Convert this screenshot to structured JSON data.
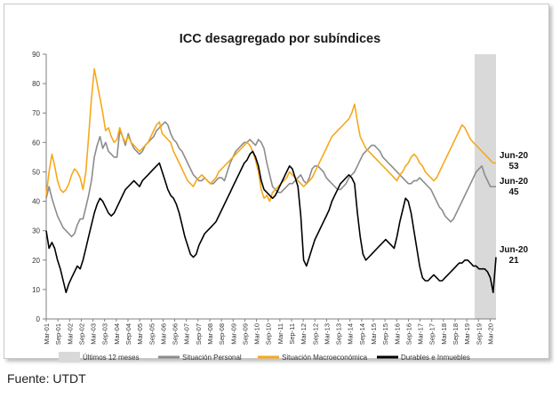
{
  "chart_data": {
    "type": "line",
    "title": "ICC desagregado por subíndices",
    "xlabel": "",
    "ylabel": "",
    "ylim": [
      0,
      90
    ],
    "yticks": [
      0,
      10,
      20,
      30,
      40,
      50,
      60,
      70,
      80,
      90
    ],
    "xticks": [
      "Mar-01",
      "Sep-01",
      "Mar-02",
      "Sep-02",
      "Mar-03",
      "Sep-03",
      "Mar-04",
      "Sep-04",
      "Mar-05",
      "Sep-05",
      "Mar-06",
      "Sep-06",
      "Mar-07",
      "Sep-07",
      "Mar-08",
      "Sep-08",
      "Mar-09",
      "Sep-09",
      "Mar-10",
      "Sep-10",
      "Mar-11",
      "Sep-11",
      "Mar-12",
      "Sep-12",
      "Mar-13",
      "Sep-13",
      "Mar-14",
      "Sep-14",
      "Mar-15",
      "Sep-15",
      "Mar-16",
      "Sep-16",
      "Mar-17",
      "Sep-17",
      "Mar-18",
      "Sep-18",
      "Mar-19",
      "Sep-19",
      "Mar-20"
    ],
    "x_start": "Mar-01",
    "x_end": "Jun-20",
    "grid": false,
    "legend_position": "bottom",
    "shaded_band": {
      "label": "Últimos 12 meses",
      "from": "Jul-19",
      "to": "Jun-20",
      "color": "#d9d9d9"
    },
    "series": [
      {
        "name": "Situación Personal",
        "color": "#8c8c8c",
        "values": [
          41,
          45,
          41,
          38,
          35,
          33,
          31,
          30,
          29,
          28,
          29,
          32,
          34,
          34,
          38,
          42,
          47,
          55,
          59,
          62,
          58,
          60,
          57,
          56,
          55,
          55,
          64,
          62,
          59,
          63,
          60,
          58,
          57,
          56,
          57,
          59,
          60,
          61,
          62,
          64,
          65,
          66,
          67,
          66,
          63,
          61,
          60,
          58,
          57,
          55,
          53,
          51,
          49,
          48,
          47,
          47,
          48,
          47,
          46,
          46,
          47,
          48,
          48,
          47,
          50,
          53,
          55,
          57,
          58,
          59,
          60,
          60,
          61,
          60,
          59,
          61,
          60,
          58,
          53,
          49,
          45,
          44,
          43,
          43,
          44,
          45,
          46,
          46,
          47,
          48,
          49,
          47,
          46,
          48,
          51,
          52,
          52,
          51,
          50,
          48,
          47,
          46,
          45,
          44,
          44,
          45,
          46,
          48,
          49,
          50,
          52,
          54,
          56,
          57,
          58,
          59,
          59,
          58,
          57,
          55,
          54,
          53,
          52,
          51,
          50,
          49,
          48,
          47,
          46,
          46,
          47,
          47,
          48,
          47,
          46,
          45,
          44,
          42,
          40,
          38,
          37,
          35,
          34,
          33,
          34,
          36,
          38,
          40,
          42,
          44,
          46,
          48,
          50,
          51,
          52,
          49,
          47,
          45,
          45,
          45
        ],
        "end_label": {
          "date": "Jun-20",
          "value": "45"
        }
      },
      {
        "name": "Situación Macroeconómica",
        "color": "#f7a81b",
        "values": [
          42,
          50,
          56,
          52,
          47,
          44,
          43,
          44,
          46,
          49,
          51,
          50,
          48,
          44,
          50,
          62,
          75,
          85,
          80,
          75,
          70,
          64,
          65,
          62,
          60,
          61,
          65,
          62,
          60,
          62,
          60,
          59,
          58,
          57,
          58,
          59,
          60,
          62,
          64,
          66,
          67,
          63,
          62,
          61,
          60,
          57,
          55,
          53,
          51,
          49,
          47,
          46,
          45,
          47,
          48,
          49,
          48,
          47,
          46,
          47,
          48,
          50,
          51,
          52,
          53,
          54,
          55,
          56,
          57,
          58,
          59,
          60,
          59,
          57,
          54,
          50,
          44,
          41,
          42,
          40,
          43,
          44,
          45,
          46,
          47,
          48,
          50,
          49,
          48,
          47,
          46,
          45,
          46,
          47,
          48,
          50,
          52,
          54,
          56,
          58,
          60,
          62,
          63,
          64,
          65,
          66,
          67,
          68,
          70,
          73,
          67,
          62,
          60,
          58,
          57,
          56,
          55,
          54,
          53,
          52,
          51,
          50,
          49,
          48,
          47,
          49,
          50,
          52,
          53,
          55,
          56,
          55,
          53,
          52,
          50,
          49,
          48,
          47,
          48,
          50,
          52,
          54,
          56,
          58,
          60,
          62,
          64,
          66,
          65,
          63,
          61,
          60,
          59,
          58,
          57,
          56,
          55,
          54,
          53,
          53
        ],
        "end_label": {
          "date": "Jun-20",
          "value": "53"
        }
      },
      {
        "name": "Durables e Inmuebles",
        "color": "#000000",
        "values": [
          30,
          24,
          26,
          24,
          20,
          17,
          13,
          9,
          12,
          14,
          16,
          18,
          17,
          20,
          24,
          28,
          32,
          36,
          39,
          41,
          40,
          38,
          36,
          35,
          36,
          38,
          40,
          42,
          44,
          45,
          46,
          47,
          46,
          45,
          47,
          48,
          49,
          50,
          51,
          52,
          53,
          50,
          47,
          44,
          42,
          41,
          39,
          36,
          32,
          28,
          25,
          22,
          21,
          22,
          25,
          27,
          29,
          30,
          31,
          32,
          33,
          35,
          37,
          39,
          41,
          43,
          45,
          47,
          49,
          51,
          53,
          54,
          56,
          57,
          55,
          52,
          47,
          44,
          43,
          42,
          41,
          42,
          44,
          46,
          48,
          50,
          52,
          51,
          48,
          45,
          35,
          20,
          18,
          21,
          24,
          27,
          29,
          31,
          33,
          35,
          37,
          40,
          42,
          44,
          46,
          47,
          48,
          49,
          48,
          46,
          36,
          28,
          22,
          20,
          21,
          22,
          23,
          24,
          25,
          26,
          27,
          26,
          25,
          24,
          28,
          33,
          37,
          41,
          40,
          36,
          30,
          24,
          18,
          14,
          13,
          13,
          14,
          15,
          14,
          13,
          13,
          14,
          15,
          16,
          17,
          18,
          19,
          19,
          20,
          20,
          19,
          18,
          18,
          17,
          17,
          17,
          16,
          14,
          9,
          21
        ],
        "end_label": {
          "date": "Jun-20",
          "value": "21"
        }
      }
    ]
  },
  "source": "Fuente: UTDT"
}
